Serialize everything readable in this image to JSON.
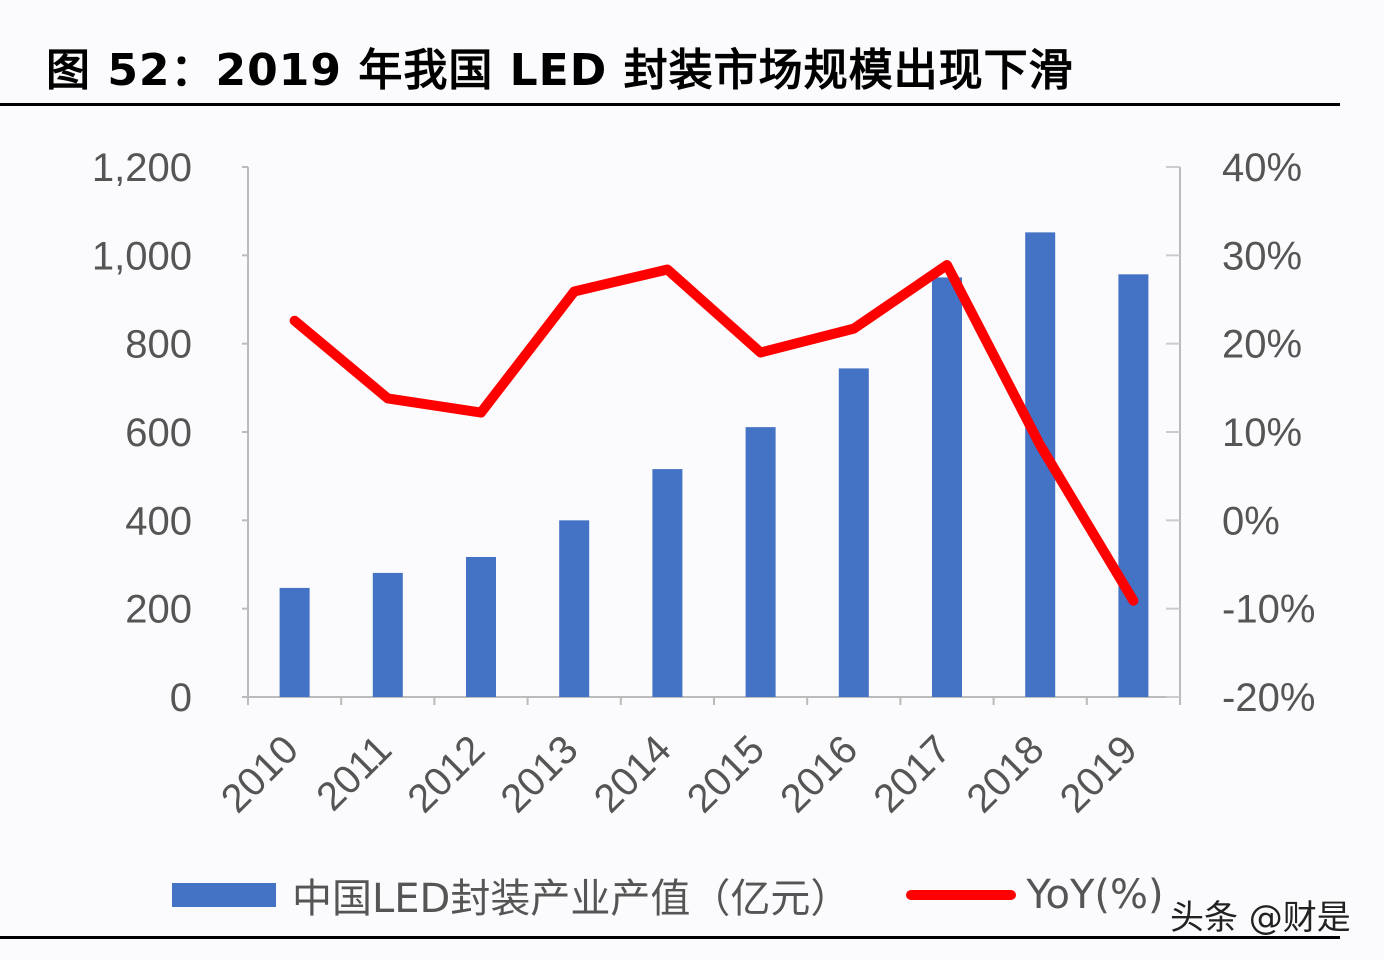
{
  "title": "图 52：2019 年我国 LED 封装市场规模出现下滑",
  "watermark": "头条 @财是",
  "chart_data": {
    "type": "bar+line",
    "categories": [
      "2010",
      "2011",
      "2012",
      "2013",
      "2014",
      "2015",
      "2016",
      "2017",
      "2018",
      "2019"
    ],
    "series": [
      {
        "name": "中国LED封装产业产值（亿元）",
        "type": "bar",
        "axis": "left",
        "color": "#4472c4",
        "values": [
          247,
          281,
          317,
          400,
          516,
          611,
          744,
          950,
          1052,
          957
        ]
      },
      {
        "name": "YoY(%)",
        "type": "line",
        "axis": "right",
        "color": "#ff0000",
        "values": [
          22.6,
          13.8,
          12.2,
          25.9,
          28.4,
          19.0,
          21.7,
          28.9,
          8.5,
          -9.1
        ]
      }
    ],
    "left_axis": {
      "ylim": [
        0,
        1200
      ],
      "ticks": [
        "0",
        "200",
        "400",
        "600",
        "800",
        "1,000",
        "1,200"
      ]
    },
    "right_axis": {
      "ylim": [
        -20,
        40
      ],
      "ticks": [
        "-20%",
        "-10%",
        "0%",
        "10%",
        "20%",
        "30%",
        "40%"
      ]
    },
    "legend_placement": "bottom",
    "grid": false
  }
}
